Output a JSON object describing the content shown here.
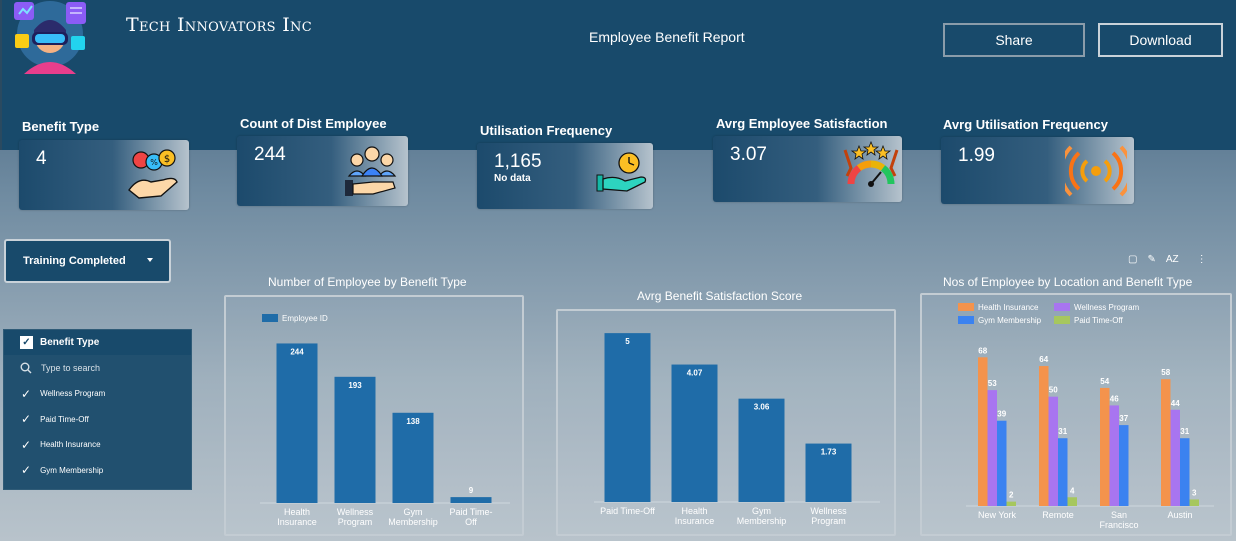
{
  "header": {
    "company": "Tech Innovators Inc",
    "report_title": "Employee Benefit Report",
    "share_label": "Share",
    "download_label": "Download"
  },
  "kpis": [
    {
      "label": "Benefit Type",
      "value": "4",
      "sub": ""
    },
    {
      "label": "Count of Dist Employee",
      "value": "244",
      "sub": ""
    },
    {
      "label": "Utilisation Frequency",
      "value": "1,165",
      "sub": "No data"
    },
    {
      "label": "Avrg Employee Satisfaction",
      "value": "3.07",
      "sub": ""
    },
    {
      "label": "Avrg Utilisation Frequency",
      "value": "1.99",
      "sub": ""
    }
  ],
  "dropdown": {
    "label": "Training Completed"
  },
  "filter": {
    "header": "Benefit Type",
    "search_placeholder": "Type to search",
    "items": [
      "Wellness Program",
      "Paid Time-Off",
      "Health Insurance",
      "Gym Membership"
    ]
  },
  "chart_tools": {
    "sort_label": "AZ"
  },
  "chart_data": [
    {
      "type": "bar",
      "title": "Number of Employee by Benefit Type",
      "legend": "Employee ID",
      "categories": [
        [
          "Health",
          "Insurance"
        ],
        [
          "Wellness",
          "Program"
        ],
        [
          "Gym",
          "Membership"
        ],
        [
          "Paid Time-",
          "Off"
        ]
      ],
      "values": [
        244,
        193,
        138,
        9
      ],
      "value_labels": [
        "244",
        "193",
        "138",
        "9"
      ],
      "ylim": [
        0,
        260
      ],
      "color": "#1f6ca8"
    },
    {
      "type": "bar",
      "title": "Avrg Benefit Satisfaction Score",
      "categories": [
        [
          "Paid Time-Off"
        ],
        [
          "Health",
          "Insurance"
        ],
        [
          "Gym",
          "Membership"
        ],
        [
          "Wellness",
          "Program"
        ]
      ],
      "values": [
        5,
        4.07,
        3.06,
        1.73
      ],
      "value_labels": [
        "5",
        "4.07",
        "3.06",
        "1.73"
      ],
      "ylim": [
        0,
        5.3
      ],
      "color": "#1f6ca8"
    },
    {
      "type": "bar",
      "title": "Nos of Employee by Location and Benefit Type",
      "categories": [
        [
          "New York"
        ],
        [
          "Remote"
        ],
        [
          "San",
          "Francisco"
        ],
        [
          "Austin"
        ]
      ],
      "series": [
        {
          "name": "Health Insurance",
          "color": "#f4934c",
          "values": [
            68,
            64,
            54,
            58
          ]
        },
        {
          "name": "Wellness Program",
          "color": "#a875f0",
          "values": [
            53,
            50,
            46,
            44
          ]
        },
        {
          "name": "Gym Membership",
          "color": "#3b82f0",
          "values": [
            39,
            31,
            37,
            31
          ]
        },
        {
          "name": "Paid Time-Off",
          "color": "#a6c75e",
          "values": [
            2,
            4,
            null,
            3
          ]
        }
      ],
      "ylim": [
        0,
        75
      ]
    }
  ]
}
